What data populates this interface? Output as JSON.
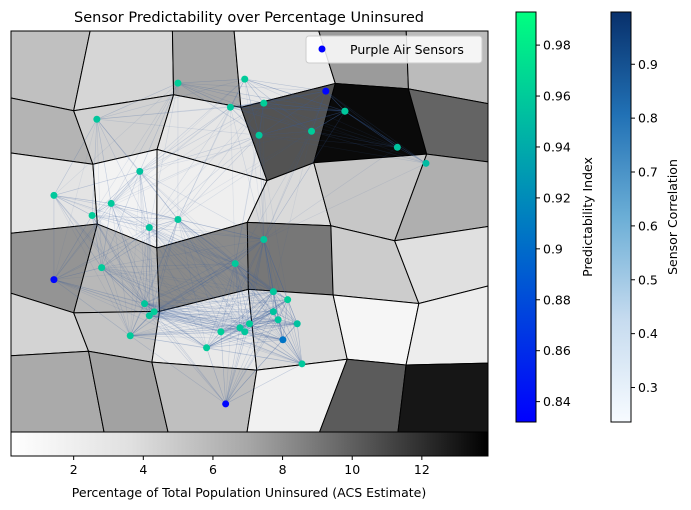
{
  "title": "Sensor Predictability over Percentage Uninsured",
  "legend": {
    "label": "Purple Air Sensors",
    "marker_color": "#0000ff"
  },
  "map": {
    "uninsured_range": [
      0.2,
      13.9
    ],
    "uninsured_colormap": "Greys",
    "tract_values_percent": [
      5.5,
      4.2,
      7.0,
      2.8,
      7.5,
      5.8,
      6.2,
      4.5,
      3.0,
      10.5,
      13.5,
      9.8,
      3.2,
      1.5,
      2.0,
      4.0,
      5.1,
      6.5,
      7.8,
      6.0,
      8.2,
      9.0,
      4.8,
      3.6,
      4.4,
      5.2,
      2.6,
      3.9,
      1.2,
      2.2,
      6.8,
      7.2,
      5.6,
      1.8,
      10.2,
      13.0
    ],
    "sensors": [
      {
        "lon": 0.18,
        "lat": 0.78,
        "predictability": 0.957
      },
      {
        "lon": 0.35,
        "lat": 0.87,
        "predictability": 0.962
      },
      {
        "lon": 0.49,
        "lat": 0.88,
        "predictability": 0.96
      },
      {
        "lon": 0.46,
        "lat": 0.81,
        "predictability": 0.958
      },
      {
        "lon": 0.53,
        "lat": 0.82,
        "predictability": 0.962
      },
      {
        "lon": 0.52,
        "lat": 0.74,
        "predictability": 0.958
      },
      {
        "lon": 0.63,
        "lat": 0.75,
        "predictability": 0.961
      },
      {
        "lon": 0.7,
        "lat": 0.8,
        "predictability": 0.962
      },
      {
        "lon": 0.81,
        "lat": 0.71,
        "predictability": 0.955
      },
      {
        "lon": 0.87,
        "lat": 0.67,
        "predictability": 0.95
      },
      {
        "lon": 0.7,
        "lat": 0.8,
        "predictability": 0.958
      },
      {
        "lon": 0.66,
        "lat": 0.85,
        "predictability": 0.835
      },
      {
        "lon": 0.27,
        "lat": 0.65,
        "predictability": 0.955
      },
      {
        "lon": 0.09,
        "lat": 0.59,
        "predictability": 0.958
      },
      {
        "lon": 0.21,
        "lat": 0.57,
        "predictability": 0.959
      },
      {
        "lon": 0.17,
        "lat": 0.54,
        "predictability": 0.961
      },
      {
        "lon": 0.35,
        "lat": 0.53,
        "predictability": 0.958
      },
      {
        "lon": 0.29,
        "lat": 0.51,
        "predictability": 0.956
      },
      {
        "lon": 0.53,
        "lat": 0.48,
        "predictability": 0.957
      },
      {
        "lon": 0.47,
        "lat": 0.42,
        "predictability": 0.959
      },
      {
        "lon": 0.19,
        "lat": 0.41,
        "predictability": 0.96
      },
      {
        "lon": 0.55,
        "lat": 0.35,
        "predictability": 0.958
      },
      {
        "lon": 0.58,
        "lat": 0.33,
        "predictability": 0.962
      },
      {
        "lon": 0.6,
        "lat": 0.27,
        "predictability": 0.954
      },
      {
        "lon": 0.09,
        "lat": 0.38,
        "predictability": 0.835
      },
      {
        "lon": 0.28,
        "lat": 0.32,
        "predictability": 0.957
      },
      {
        "lon": 0.3,
        "lat": 0.3,
        "predictability": 0.961
      },
      {
        "lon": 0.29,
        "lat": 0.29,
        "predictability": 0.958
      },
      {
        "lon": 0.55,
        "lat": 0.3,
        "predictability": 0.955
      },
      {
        "lon": 0.25,
        "lat": 0.24,
        "predictability": 0.96
      },
      {
        "lon": 0.44,
        "lat": 0.25,
        "predictability": 0.962
      },
      {
        "lon": 0.49,
        "lat": 0.25,
        "predictability": 0.957
      },
      {
        "lon": 0.5,
        "lat": 0.27,
        "predictability": 0.961
      },
      {
        "lon": 0.48,
        "lat": 0.26,
        "predictability": 0.958
      },
      {
        "lon": 0.41,
        "lat": 0.21,
        "predictability": 0.96
      },
      {
        "lon": 0.56,
        "lat": 0.28,
        "predictability": 0.957
      },
      {
        "lon": 0.57,
        "lat": 0.23,
        "predictability": 0.905
      },
      {
        "lon": 0.61,
        "lat": 0.17,
        "predictability": 0.958
      },
      {
        "lon": 0.45,
        "lat": 0.07,
        "predictability": 0.835
      }
    ]
  },
  "colorbar_uninsured": {
    "label": "Percentage of Total Population Uninsured (ACS Estimate)",
    "ticks": [
      2,
      4,
      6,
      8,
      10,
      12
    ],
    "range": [
      0.2,
      13.9
    ],
    "colormap": "Greys"
  },
  "colorbar_predictability": {
    "label": "Predictability Index",
    "ticks": [
      0.84,
      0.86,
      0.88,
      0.9,
      0.92,
      0.94,
      0.96,
      0.98
    ],
    "range": [
      0.832,
      0.993
    ],
    "colormap": "winter"
  },
  "colorbar_correlation": {
    "label": "Sensor Correlation",
    "ticks": [
      0.3,
      0.4,
      0.5,
      0.6,
      0.7,
      0.8,
      0.9
    ],
    "range": [
      0.236,
      0.997
    ],
    "colormap": "Blues"
  }
}
